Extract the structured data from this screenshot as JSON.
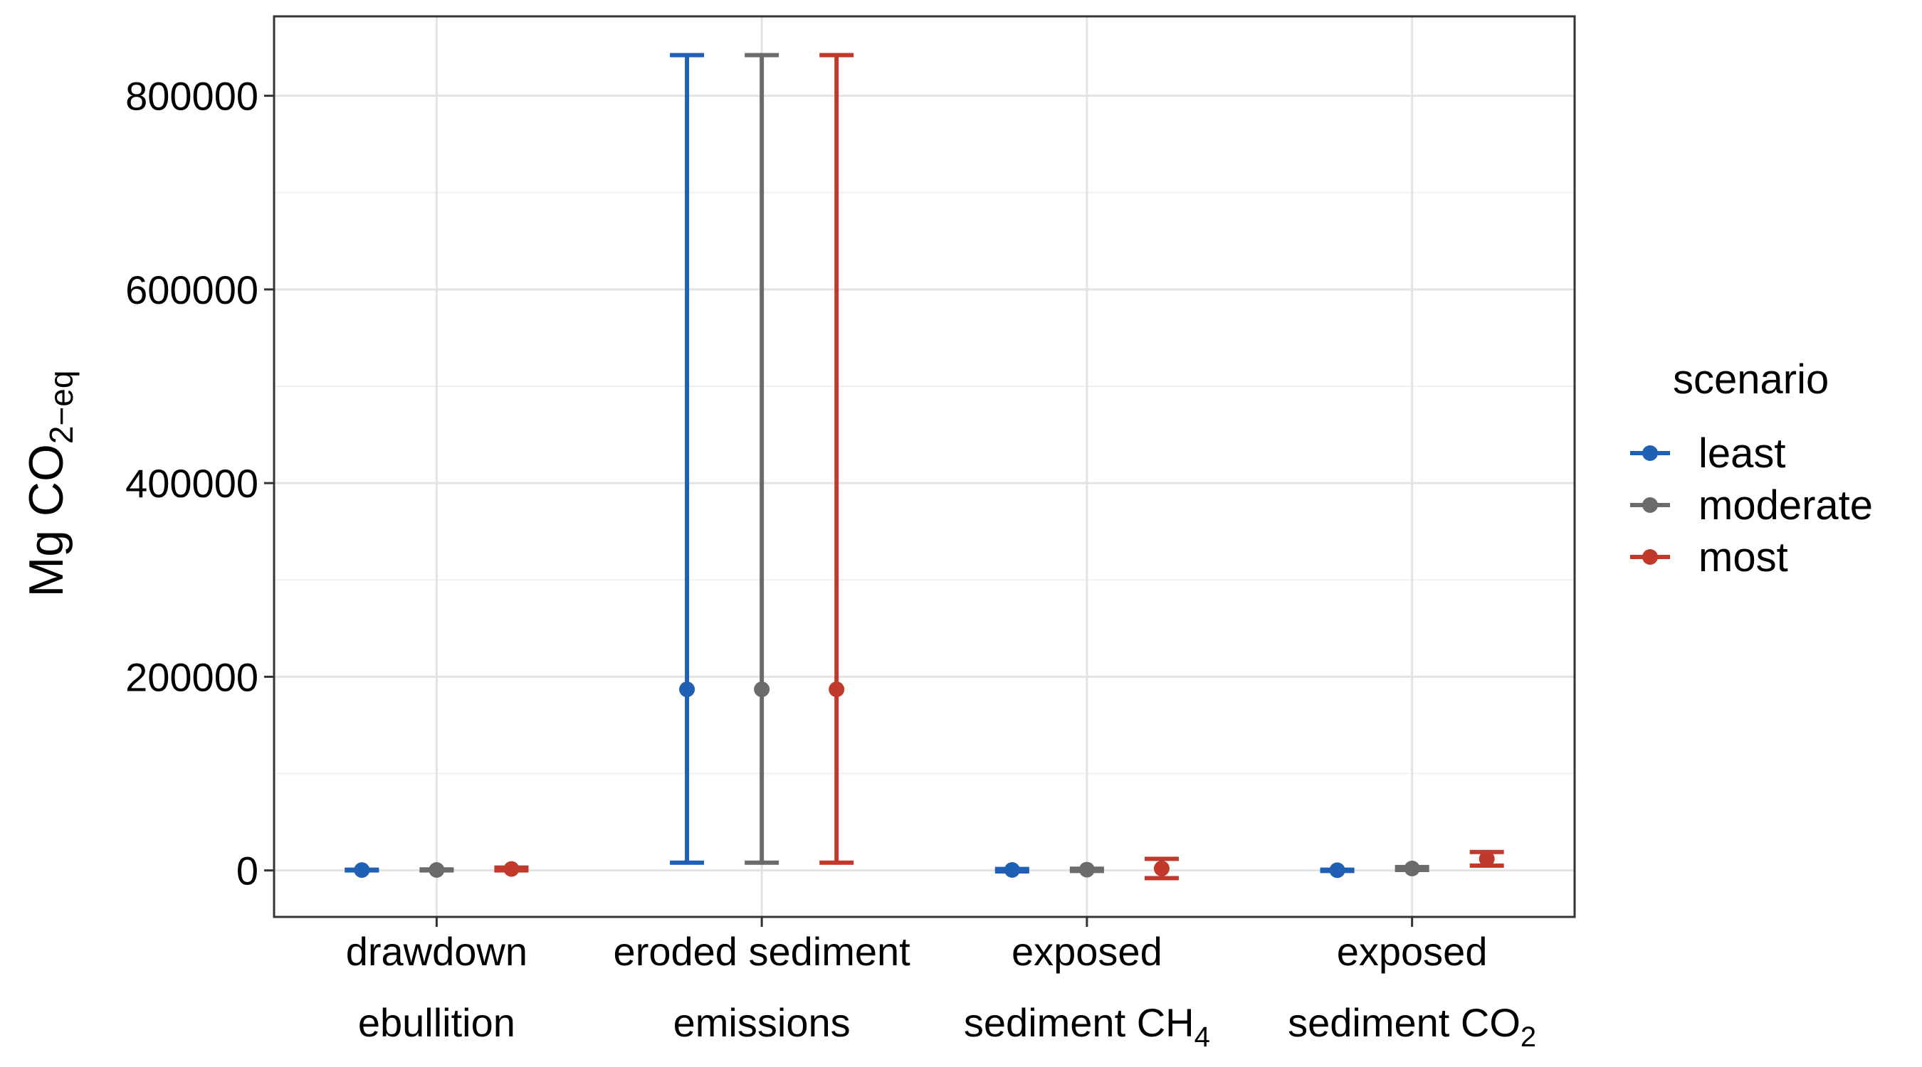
{
  "chart_data": {
    "type": "errorbar",
    "ylabel": {
      "main": "Mg CO",
      "sub": "2−eq"
    },
    "ylim": [
      -48000,
      882000
    ],
    "yticks": [
      0,
      200000,
      400000,
      600000,
      800000
    ],
    "ytick_labels": [
      "0",
      "200000",
      "400000",
      "600000",
      "800000"
    ],
    "grid": true,
    "categories": [
      {
        "lines": [
          {
            "main": "drawdown"
          },
          {
            "main": "ebullition"
          }
        ]
      },
      {
        "lines": [
          {
            "main": "eroded sediment"
          },
          {
            "main": "emissions"
          }
        ]
      },
      {
        "lines": [
          {
            "main": "exposed"
          },
          {
            "main": "sediment CH",
            "sub": "4"
          }
        ]
      },
      {
        "lines": [
          {
            "main": "exposed"
          },
          {
            "main": "sediment CO",
            "sub": "2"
          }
        ]
      }
    ],
    "legend": {
      "title": "scenario",
      "position": "right"
    },
    "series": [
      {
        "name": "least",
        "color": "#1f5fb4",
        "values": [
          400,
          187000,
          500,
          200
        ],
        "low": [
          0,
          8000,
          -1000,
          -500
        ],
        "high": [
          800,
          842000,
          1500,
          800
        ]
      },
      {
        "name": "moderate",
        "color": "#6b6b6b",
        "values": [
          500,
          187000,
          800,
          2000
        ],
        "low": [
          0,
          8000,
          -500,
          500
        ],
        "high": [
          1000,
          842000,
          1800,
          3500
        ]
      },
      {
        "name": "most",
        "color": "#c0392b",
        "values": [
          1500,
          187000,
          2000,
          12000
        ],
        "low": [
          0,
          8000,
          -8000,
          5000
        ],
        "high": [
          3000,
          842000,
          12000,
          19000
        ]
      }
    ]
  }
}
